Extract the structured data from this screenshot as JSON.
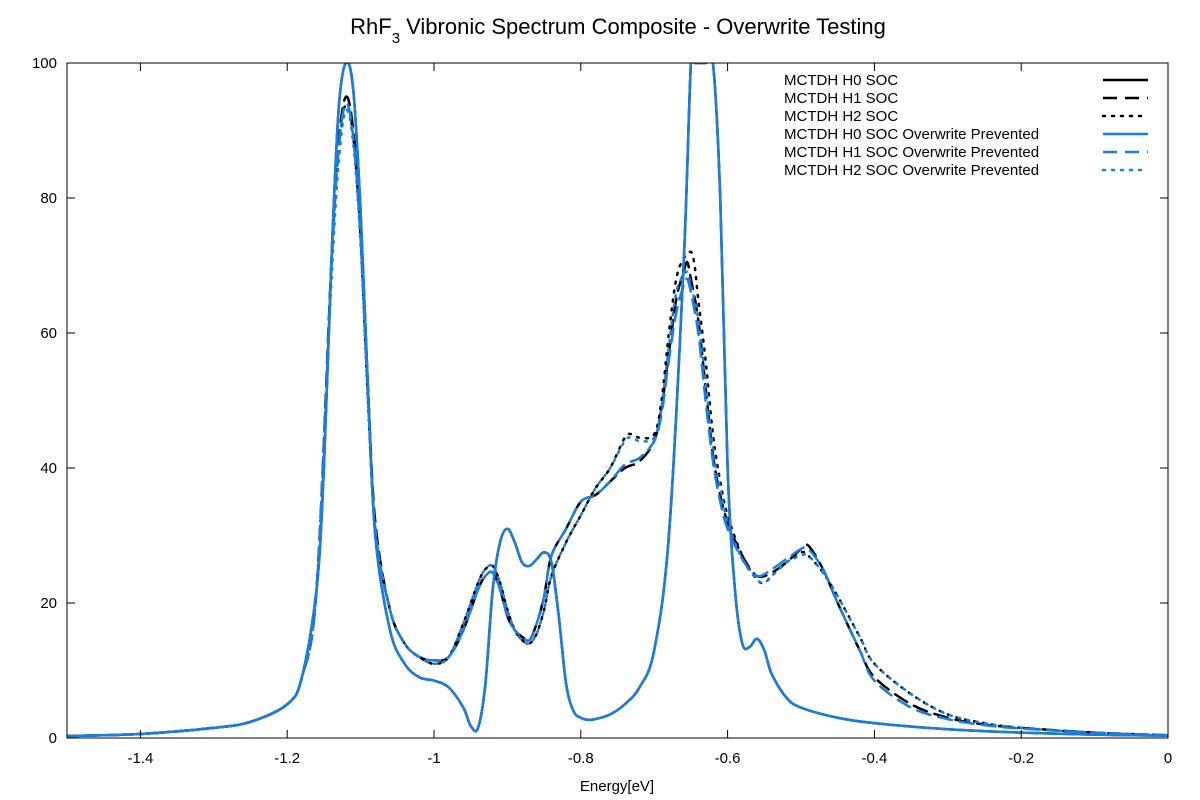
{
  "chart_data": {
    "type": "line",
    "title": "RhF",
    "title_sub": "3",
    "title_rest": " Vibronic Spectrum Composite - Overwrite Testing",
    "xlabel": "Energy[eV]",
    "ylabel": "",
    "xlim": [
      -1.5,
      0
    ],
    "ylim": [
      0,
      100
    ],
    "x_ticks": [
      -1.4,
      -1.2,
      -1,
      -0.8,
      -0.6,
      -0.4,
      -0.2,
      0
    ],
    "x_tick_labels": [
      "-1.4",
      "-1.2",
      "-1",
      "-0.8",
      "-0.6",
      "-0.4",
      "-0.2",
      "0"
    ],
    "y_ticks": [
      0,
      20,
      40,
      60,
      80,
      100
    ],
    "y_tick_labels": [
      "0",
      "20",
      "40",
      "60",
      "80",
      "100"
    ],
    "grid": false,
    "zero_line": true,
    "legend_position": "top-right",
    "series": [
      {
        "name": "MCTDH H0 SOC",
        "color": "#000000",
        "dash": "solid",
        "x": [
          -1.5,
          -1.4,
          -1.3,
          -1.25,
          -1.2,
          -1.18,
          -1.16,
          -1.15,
          -1.14,
          -1.13,
          -1.12,
          -1.11,
          -1.1,
          -1.09,
          -1.08,
          -1.06,
          -1.04,
          -1.02,
          -1.0,
          -0.98,
          -0.96,
          -0.95,
          -0.94,
          -0.93,
          -0.92,
          -0.91,
          -0.9,
          -0.89,
          -0.88,
          -0.87,
          -0.86,
          -0.85,
          -0.84,
          -0.83,
          -0.82,
          -0.81,
          -0.8,
          -0.79,
          -0.78,
          -0.76,
          -0.74,
          -0.72,
          -0.7,
          -0.68,
          -0.66,
          -0.65,
          -0.645,
          -0.64,
          -0.63,
          -0.62,
          -0.61,
          -0.6,
          -0.59,
          -0.58,
          -0.57,
          -0.56,
          -0.55,
          -0.54,
          -0.52,
          -0.5,
          -0.45,
          -0.4,
          -0.3,
          -0.2,
          -0.1,
          0
        ],
        "y": [
          0.3,
          0.6,
          1.5,
          2.4,
          5,
          9,
          22,
          40,
          70,
          93,
          100,
          96,
          78,
          52,
          30,
          16,
          11,
          9,
          8.5,
          7.5,
          4.5,
          1.8,
          1.5,
          8,
          22,
          29,
          31,
          29,
          26,
          25.5,
          26.5,
          27.5,
          26,
          18,
          8,
          4,
          3,
          2.7,
          2.8,
          3.5,
          5,
          7.5,
          13,
          30,
          70,
          100,
          100,
          100,
          100,
          100,
          80,
          40,
          22,
          14,
          13.5,
          14.7,
          13,
          9.5,
          6,
          4.5,
          3,
          2.2,
          1.3,
          0.8,
          0.5,
          0.35
        ]
      },
      {
        "name": "MCTDH H1 SOC",
        "color": "#000000",
        "dash": "dashed",
        "x": [
          -1.5,
          -1.4,
          -1.3,
          -1.25,
          -1.2,
          -1.18,
          -1.16,
          -1.14,
          -1.13,
          -1.12,
          -1.11,
          -1.1,
          -1.09,
          -1.08,
          -1.06,
          -1.04,
          -1.02,
          -1.0,
          -0.98,
          -0.96,
          -0.94,
          -0.93,
          -0.92,
          -0.91,
          -0.9,
          -0.89,
          -0.88,
          -0.87,
          -0.86,
          -0.85,
          -0.84,
          -0.82,
          -0.8,
          -0.78,
          -0.76,
          -0.74,
          -0.72,
          -0.7,
          -0.69,
          -0.68,
          -0.67,
          -0.66,
          -0.655,
          -0.65,
          -0.64,
          -0.63,
          -0.62,
          -0.61,
          -0.6,
          -0.58,
          -0.56,
          -0.54,
          -0.52,
          -0.5,
          -0.49,
          -0.47,
          -0.45,
          -0.42,
          -0.4,
          -0.35,
          -0.3,
          -0.25,
          -0.2,
          -0.1,
          0
        ],
        "y": [
          0.3,
          0.6,
          1.5,
          2.4,
          5,
          9,
          22,
          70,
          88,
          95,
          90,
          75,
          52,
          32,
          19,
          14,
          12,
          11.5,
          12,
          16,
          22,
          24,
          24.5,
          22,
          18,
          16,
          15,
          14.5,
          17,
          21,
          27,
          31,
          35,
          36,
          38,
          40,
          41,
          44,
          49,
          57,
          65,
          69,
          70.5,
          68,
          62,
          52,
          42,
          36,
          32,
          27,
          24,
          24.5,
          26,
          28,
          28.5,
          25,
          20,
          13,
          9,
          5,
          3,
          2,
          1.5,
          0.8,
          0.4
        ]
      },
      {
        "name": "MCTDH H2 SOC",
        "color": "#000000",
        "dash": "dotted",
        "x": [
          -1.5,
          -1.4,
          -1.3,
          -1.25,
          -1.2,
          -1.18,
          -1.16,
          -1.14,
          -1.13,
          -1.12,
          -1.11,
          -1.1,
          -1.09,
          -1.08,
          -1.06,
          -1.04,
          -1.02,
          -1.0,
          -0.98,
          -0.96,
          -0.94,
          -0.93,
          -0.92,
          -0.91,
          -0.9,
          -0.89,
          -0.88,
          -0.87,
          -0.86,
          -0.85,
          -0.84,
          -0.82,
          -0.8,
          -0.78,
          -0.76,
          -0.74,
          -0.73,
          -0.72,
          -0.7,
          -0.69,
          -0.68,
          -0.67,
          -0.66,
          -0.65,
          -0.645,
          -0.64,
          -0.63,
          -0.62,
          -0.61,
          -0.6,
          -0.58,
          -0.56,
          -0.55,
          -0.54,
          -0.52,
          -0.5,
          -0.49,
          -0.47,
          -0.45,
          -0.42,
          -0.4,
          -0.35,
          -0.3,
          -0.25,
          -0.2,
          -0.1,
          0
        ],
        "y": [
          0.3,
          0.6,
          1.5,
          2.4,
          5,
          9,
          22,
          68,
          86,
          94,
          89,
          74,
          50,
          31,
          19,
          14,
          12,
          11,
          12,
          17,
          23,
          25,
          25.5,
          23,
          19,
          16,
          14.5,
          14,
          15.5,
          19,
          24,
          29,
          33,
          37,
          40,
          44.5,
          45,
          44.5,
          45,
          50,
          60,
          68,
          71,
          72,
          70,
          65,
          56,
          45,
          38,
          33,
          27,
          23.5,
          23,
          24,
          26,
          27.5,
          27,
          24.5,
          21,
          15,
          11,
          6.5,
          3.5,
          2.2,
          1.5,
          0.8,
          0.4
        ]
      },
      {
        "name": "MCTDH H0 SOC Overwrite Prevented",
        "color": "#1a7de0",
        "dash": "solid",
        "x": [
          -1.5,
          -1.4,
          -1.3,
          -1.25,
          -1.2,
          -1.18,
          -1.16,
          -1.15,
          -1.14,
          -1.13,
          -1.12,
          -1.11,
          -1.1,
          -1.09,
          -1.08,
          -1.06,
          -1.04,
          -1.02,
          -1.0,
          -0.98,
          -0.96,
          -0.95,
          -0.94,
          -0.93,
          -0.92,
          -0.91,
          -0.9,
          -0.89,
          -0.88,
          -0.87,
          -0.86,
          -0.85,
          -0.84,
          -0.83,
          -0.82,
          -0.81,
          -0.8,
          -0.79,
          -0.78,
          -0.76,
          -0.74,
          -0.72,
          -0.7,
          -0.68,
          -0.66,
          -0.65,
          -0.645,
          -0.64,
          -0.63,
          -0.62,
          -0.61,
          -0.6,
          -0.59,
          -0.58,
          -0.57,
          -0.56,
          -0.55,
          -0.54,
          -0.52,
          -0.5,
          -0.45,
          -0.4,
          -0.3,
          -0.2,
          -0.1,
          0
        ],
        "y": [
          0.3,
          0.6,
          1.5,
          2.4,
          5,
          9,
          22,
          40,
          70,
          93,
          100,
          96,
          78,
          52,
          30,
          16,
          11,
          9,
          8.5,
          7.5,
          4.5,
          1.8,
          1.5,
          8,
          22,
          29,
          31,
          29,
          26,
          25.5,
          26.5,
          27.5,
          26,
          18,
          8,
          4,
          3,
          2.7,
          2.8,
          3.5,
          5,
          7.5,
          13,
          30,
          70,
          100,
          100,
          100,
          100,
          100,
          80,
          40,
          22,
          14,
          13.5,
          14.7,
          13,
          9.5,
          6,
          4.5,
          3,
          2.2,
          1.3,
          0.8,
          0.5,
          0.35
        ]
      },
      {
        "name": "MCTDH H1 SOC Overwrite Prevented",
        "color": "#1a7de0",
        "dash": "dashed",
        "x": [
          -1.5,
          -1.4,
          -1.3,
          -1.25,
          -1.2,
          -1.18,
          -1.16,
          -1.14,
          -1.13,
          -1.12,
          -1.11,
          -1.1,
          -1.09,
          -1.08,
          -1.06,
          -1.04,
          -1.02,
          -1.0,
          -0.98,
          -0.96,
          -0.94,
          -0.93,
          -0.92,
          -0.91,
          -0.9,
          -0.89,
          -0.88,
          -0.87,
          -0.86,
          -0.85,
          -0.84,
          -0.82,
          -0.8,
          -0.78,
          -0.76,
          -0.74,
          -0.72,
          -0.7,
          -0.69,
          -0.68,
          -0.67,
          -0.66,
          -0.655,
          -0.65,
          -0.64,
          -0.63,
          -0.62,
          -0.61,
          -0.6,
          -0.58,
          -0.56,
          -0.54,
          -0.52,
          -0.5,
          -0.49,
          -0.47,
          -0.45,
          -0.42,
          -0.4,
          -0.35,
          -0.3,
          -0.25,
          -0.2,
          -0.1,
          0
        ],
        "y": [
          0.3,
          0.6,
          1.5,
          2.4,
          5,
          9,
          22,
          69,
          87,
          94,
          89,
          74,
          51,
          31,
          19,
          14,
          12,
          11.5,
          12,
          16,
          22,
          24,
          24.5,
          22,
          18,
          16,
          15,
          14.5,
          17,
          21,
          27,
          31,
          35,
          36,
          38,
          40.5,
          41.5,
          44,
          48,
          56,
          63,
          67,
          68,
          66,
          60,
          50,
          41,
          35,
          31,
          26.5,
          24,
          25,
          26.5,
          28,
          28,
          25,
          20,
          13,
          8.5,
          4.5,
          2.8,
          1.9,
          1.4,
          0.8,
          0.4
        ]
      },
      {
        "name": "MCTDH H2 SOC Overwrite Prevented",
        "color": "#1a7de0",
        "dash": "dotted",
        "x": [
          -1.5,
          -1.4,
          -1.3,
          -1.25,
          -1.2,
          -1.18,
          -1.16,
          -1.14,
          -1.13,
          -1.12,
          -1.11,
          -1.1,
          -1.09,
          -1.08,
          -1.06,
          -1.04,
          -1.02,
          -1.0,
          -0.98,
          -0.96,
          -0.94,
          -0.93,
          -0.92,
          -0.91,
          -0.9,
          -0.89,
          -0.88,
          -0.87,
          -0.86,
          -0.85,
          -0.84,
          -0.82,
          -0.8,
          -0.78,
          -0.76,
          -0.74,
          -0.73,
          -0.72,
          -0.7,
          -0.69,
          -0.68,
          -0.67,
          -0.66,
          -0.655,
          -0.65,
          -0.64,
          -0.63,
          -0.62,
          -0.61,
          -0.6,
          -0.58,
          -0.56,
          -0.55,
          -0.54,
          -0.52,
          -0.5,
          -0.49,
          -0.47,
          -0.45,
          -0.42,
          -0.4,
          -0.35,
          -0.3,
          -0.25,
          -0.2,
          -0.1,
          0
        ],
        "y": [
          0.3,
          0.6,
          1.5,
          2.4,
          5,
          9,
          22,
          67,
          85,
          93,
          88,
          73,
          50,
          31,
          19,
          14,
          12,
          11,
          12,
          17,
          23,
          25,
          25.5,
          23,
          19,
          16,
          14.5,
          14,
          15.5,
          19,
          24,
          29,
          33,
          37,
          40,
          44,
          44.5,
          44,
          44.5,
          49,
          58,
          66,
          68.5,
          69,
          67,
          62,
          53,
          43,
          37,
          32,
          26.5,
          23.5,
          23,
          24,
          26,
          27,
          27,
          24.5,
          21,
          15,
          11,
          6.5,
          3.5,
          2.2,
          1.5,
          0.8,
          0.4
        ]
      }
    ]
  }
}
